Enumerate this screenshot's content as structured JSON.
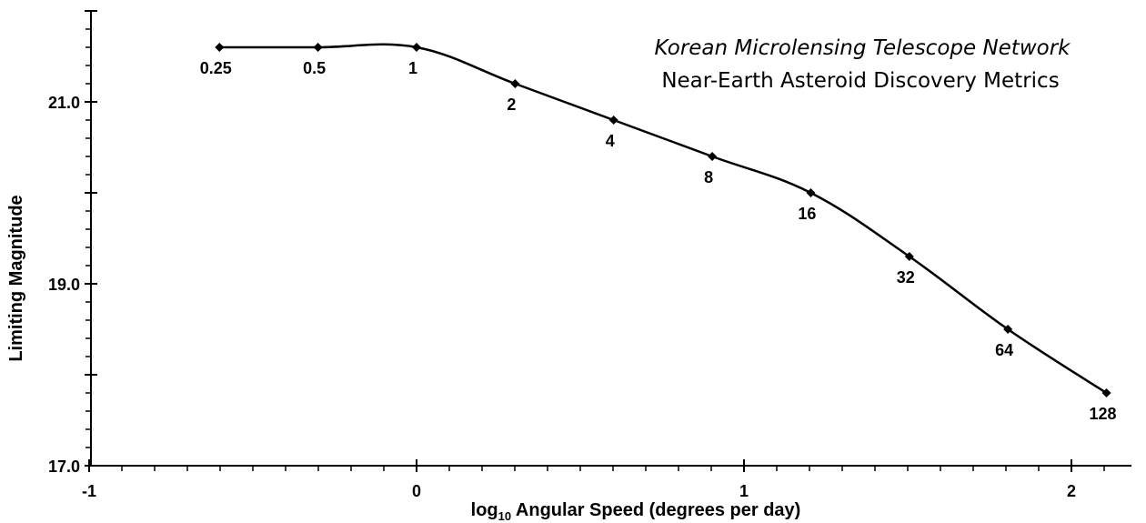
{
  "chart_data": {
    "type": "line",
    "title": "Korean Microlensing Telescope Network",
    "subtitle": "Near-Earth Asteroid Discovery Metrics",
    "xlabel_prefix": "log",
    "xlabel_sub": "10",
    "xlabel_rest": " Angular Speed (degrees per day)",
    "ylabel": "Limiting Magnitude",
    "xlim": [
      -1,
      2.2
    ],
    "ylim": [
      17.0,
      22.0
    ],
    "x_ticks": [
      "-1",
      "0",
      "1",
      "2"
    ],
    "y_ticks": [
      "17.0",
      "19.0",
      "21.0"
    ],
    "grid": false,
    "legend": "none",
    "series": [
      {
        "line_color": "#000000",
        "points": [
          {
            "label": "0.25",
            "x": -0.602,
            "y": 21.6
          },
          {
            "label": "0.5",
            "x": -0.301,
            "y": 21.6
          },
          {
            "label": "1",
            "x": 0.0,
            "y": 21.6
          },
          {
            "label": "2",
            "x": 0.301,
            "y": 21.2
          },
          {
            "label": "4",
            "x": 0.602,
            "y": 20.8
          },
          {
            "label": "8",
            "x": 0.903,
            "y": 20.4
          },
          {
            "label": "16",
            "x": 1.204,
            "y": 20.0
          },
          {
            "label": "32",
            "x": 1.505,
            "y": 19.3
          },
          {
            "label": "64",
            "x": 1.806,
            "y": 18.5
          },
          {
            "label": "128",
            "x": 2.107,
            "y": 17.8
          }
        ]
      }
    ]
  }
}
